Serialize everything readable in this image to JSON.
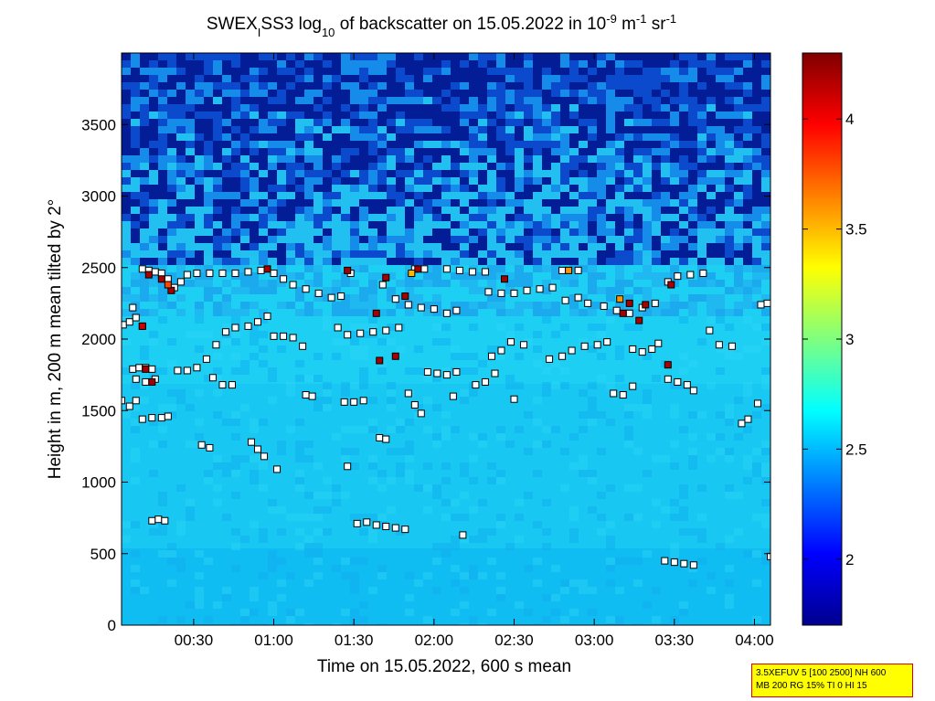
{
  "chart_data": {
    "type": "heatmap",
    "title": {
      "parts": [
        "SWEX",
        "I",
        "SS3 log",
        "10",
        " of backscatter on 15.05.2022 in 10",
        "-9",
        " m",
        "-1",
        " sr",
        "-1"
      ]
    },
    "xlabel": "Time on 15.05.2022, 600 s mean",
    "ylabel": "Height in m, 200 m mean tilted by 2°",
    "x_unit": "hours after 00:00",
    "xlim": [
      0.05,
      4.1
    ],
    "ylim": [
      0,
      4000
    ],
    "xticks": [
      {
        "value": 0.5,
        "label": "00:30"
      },
      {
        "value": 1.0,
        "label": "01:00"
      },
      {
        "value": 1.5,
        "label": "01:30"
      },
      {
        "value": 2.0,
        "label": "02:00"
      },
      {
        "value": 2.5,
        "label": "02:30"
      },
      {
        "value": 3.0,
        "label": "03:00"
      },
      {
        "value": 3.5,
        "label": "03:30"
      },
      {
        "value": 4.0,
        "label": "04:00"
      }
    ],
    "yticks": [
      0,
      500,
      1000,
      1500,
      2000,
      2500,
      3000,
      3500
    ],
    "colorbar": {
      "range": [
        1.7,
        4.3
      ],
      "ticks": [
        "2",
        "2.5",
        "3",
        "3.5",
        "4"
      ],
      "colormap": "jet"
    },
    "layer_points": [
      {
        "x": 0.05,
        "y": 1570
      },
      {
        "x": 0.1,
        "y": 1530
      },
      {
        "x": 0.14,
        "y": 1570
      },
      {
        "x": 0.06,
        "y": 2100
      },
      {
        "x": 0.1,
        "y": 2120
      },
      {
        "x": 0.14,
        "y": 2150
      },
      {
        "x": 0.18,
        "y": 2090
      },
      {
        "x": 0.12,
        "y": 2220
      },
      {
        "x": 0.12,
        "y": 1790
      },
      {
        "x": 0.16,
        "y": 1800
      },
      {
        "x": 0.2,
        "y": 1800
      },
      {
        "x": 0.24,
        "y": 1790
      },
      {
        "x": 0.14,
        "y": 1720
      },
      {
        "x": 0.2,
        "y": 1700
      },
      {
        "x": 0.26,
        "y": 1720
      },
      {
        "x": 0.18,
        "y": 1440
      },
      {
        "x": 0.24,
        "y": 1450
      },
      {
        "x": 0.3,
        "y": 1450
      },
      {
        "x": 0.34,
        "y": 1460
      },
      {
        "x": 0.24,
        "y": 730
      },
      {
        "x": 0.28,
        "y": 740
      },
      {
        "x": 0.32,
        "y": 730
      },
      {
        "x": 0.18,
        "y": 2490
      },
      {
        "x": 0.22,
        "y": 2480
      },
      {
        "x": 0.26,
        "y": 2470
      },
      {
        "x": 0.3,
        "y": 2460
      },
      {
        "x": 0.34,
        "y": 2420
      },
      {
        "x": 0.38,
        "y": 2360
      },
      {
        "x": 0.42,
        "y": 2400
      },
      {
        "x": 0.46,
        "y": 2450
      },
      {
        "x": 0.52,
        "y": 2460
      },
      {
        "x": 0.6,
        "y": 2460
      },
      {
        "x": 0.68,
        "y": 2460
      },
      {
        "x": 0.76,
        "y": 2460
      },
      {
        "x": 0.84,
        "y": 2470
      },
      {
        "x": 0.92,
        "y": 2480
      },
      {
        "x": 1.0,
        "y": 2460
      },
      {
        "x": 1.06,
        "y": 2420
      },
      {
        "x": 1.12,
        "y": 2380
      },
      {
        "x": 1.2,
        "y": 2350
      },
      {
        "x": 1.28,
        "y": 2320
      },
      {
        "x": 1.36,
        "y": 2290
      },
      {
        "x": 1.42,
        "y": 2300
      },
      {
        "x": 1.48,
        "y": 2460
      },
      {
        "x": 0.4,
        "y": 1780
      },
      {
        "x": 0.46,
        "y": 1780
      },
      {
        "x": 0.52,
        "y": 1800
      },
      {
        "x": 0.58,
        "y": 1860
      },
      {
        "x": 0.64,
        "y": 1960
      },
      {
        "x": 0.7,
        "y": 2050
      },
      {
        "x": 0.76,
        "y": 2080
      },
      {
        "x": 0.84,
        "y": 2090
      },
      {
        "x": 0.62,
        "y": 1730
      },
      {
        "x": 0.68,
        "y": 1680
      },
      {
        "x": 0.74,
        "y": 1680
      },
      {
        "x": 0.9,
        "y": 2120
      },
      {
        "x": 0.96,
        "y": 2160
      },
      {
        "x": 1.0,
        "y": 2020
      },
      {
        "x": 1.06,
        "y": 2020
      },
      {
        "x": 1.12,
        "y": 2010
      },
      {
        "x": 1.18,
        "y": 1950
      },
      {
        "x": 0.86,
        "y": 1280
      },
      {
        "x": 0.9,
        "y": 1230
      },
      {
        "x": 0.94,
        "y": 1180
      },
      {
        "x": 0.55,
        "y": 1260
      },
      {
        "x": 0.6,
        "y": 1240
      },
      {
        "x": 1.02,
        "y": 1090
      },
      {
        "x": 1.2,
        "y": 1610
      },
      {
        "x": 1.24,
        "y": 1600
      },
      {
        "x": 1.4,
        "y": 2080
      },
      {
        "x": 1.46,
        "y": 2030
      },
      {
        "x": 1.54,
        "y": 2040
      },
      {
        "x": 1.62,
        "y": 2050
      },
      {
        "x": 1.7,
        "y": 2060
      },
      {
        "x": 1.78,
        "y": 2080
      },
      {
        "x": 1.44,
        "y": 1560
      },
      {
        "x": 1.5,
        "y": 1560
      },
      {
        "x": 1.56,
        "y": 1570
      },
      {
        "x": 1.46,
        "y": 1110
      },
      {
        "x": 1.52,
        "y": 710
      },
      {
        "x": 1.58,
        "y": 720
      },
      {
        "x": 1.64,
        "y": 700
      },
      {
        "x": 1.7,
        "y": 690
      },
      {
        "x": 1.76,
        "y": 680
      },
      {
        "x": 1.82,
        "y": 670
      },
      {
        "x": 1.66,
        "y": 1310
      },
      {
        "x": 1.7,
        "y": 1300
      },
      {
        "x": 1.68,
        "y": 2380
      },
      {
        "x": 1.76,
        "y": 2280
      },
      {
        "x": 1.84,
        "y": 2240
      },
      {
        "x": 1.92,
        "y": 2220
      },
      {
        "x": 2.0,
        "y": 2210
      },
      {
        "x": 2.08,
        "y": 2180
      },
      {
        "x": 2.14,
        "y": 2200
      },
      {
        "x": 1.84,
        "y": 1620
      },
      {
        "x": 1.88,
        "y": 1540
      },
      {
        "x": 1.92,
        "y": 1480
      },
      {
        "x": 1.88,
        "y": 2490
      },
      {
        "x": 1.94,
        "y": 2490
      },
      {
        "x": 1.96,
        "y": 1770
      },
      {
        "x": 2.02,
        "y": 1760
      },
      {
        "x": 2.08,
        "y": 1750
      },
      {
        "x": 2.14,
        "y": 1770
      },
      {
        "x": 2.12,
        "y": 1600
      },
      {
        "x": 2.18,
        "y": 630
      },
      {
        "x": 2.08,
        "y": 2490
      },
      {
        "x": 2.16,
        "y": 2480
      },
      {
        "x": 2.24,
        "y": 2470
      },
      {
        "x": 2.32,
        "y": 2470
      },
      {
        "x": 2.26,
        "y": 1680
      },
      {
        "x": 2.32,
        "y": 1700
      },
      {
        "x": 2.38,
        "y": 1760
      },
      {
        "x": 2.36,
        "y": 1880
      },
      {
        "x": 2.42,
        "y": 1920
      },
      {
        "x": 2.48,
        "y": 1980
      },
      {
        "x": 2.56,
        "y": 1960
      },
      {
        "x": 2.34,
        "y": 2330
      },
      {
        "x": 2.42,
        "y": 2320
      },
      {
        "x": 2.5,
        "y": 2320
      },
      {
        "x": 2.58,
        "y": 2340
      },
      {
        "x": 2.66,
        "y": 2350
      },
      {
        "x": 2.74,
        "y": 2360
      },
      {
        "x": 2.5,
        "y": 1580
      },
      {
        "x": 2.72,
        "y": 1860
      },
      {
        "x": 2.8,
        "y": 1880
      },
      {
        "x": 2.86,
        "y": 1920
      },
      {
        "x": 2.94,
        "y": 1950
      },
      {
        "x": 3.02,
        "y": 1960
      },
      {
        "x": 3.08,
        "y": 1980
      },
      {
        "x": 2.82,
        "y": 2270
      },
      {
        "x": 2.9,
        "y": 2290
      },
      {
        "x": 2.96,
        "y": 2250
      },
      {
        "x": 2.8,
        "y": 2480
      },
      {
        "x": 2.9,
        "y": 2480
      },
      {
        "x": 3.06,
        "y": 2230
      },
      {
        "x": 3.14,
        "y": 2200
      },
      {
        "x": 3.22,
        "y": 2180
      },
      {
        "x": 3.3,
        "y": 2220
      },
      {
        "x": 3.38,
        "y": 2250
      },
      {
        "x": 3.12,
        "y": 1620
      },
      {
        "x": 3.18,
        "y": 1610
      },
      {
        "x": 3.24,
        "y": 1670
      },
      {
        "x": 3.24,
        "y": 1930
      },
      {
        "x": 3.3,
        "y": 1910
      },
      {
        "x": 3.36,
        "y": 1930
      },
      {
        "x": 3.4,
        "y": 1970
      },
      {
        "x": 3.46,
        "y": 1720
      },
      {
        "x": 3.52,
        "y": 1700
      },
      {
        "x": 3.58,
        "y": 1680
      },
      {
        "x": 3.62,
        "y": 1640
      },
      {
        "x": 3.46,
        "y": 2400
      },
      {
        "x": 3.52,
        "y": 2440
      },
      {
        "x": 3.6,
        "y": 2450
      },
      {
        "x": 3.68,
        "y": 2460
      },
      {
        "x": 3.44,
        "y": 450
      },
      {
        "x": 3.5,
        "y": 440
      },
      {
        "x": 3.56,
        "y": 430
      },
      {
        "x": 3.62,
        "y": 420
      },
      {
        "x": 3.72,
        "y": 2060
      },
      {
        "x": 3.78,
        "y": 1960
      },
      {
        "x": 3.86,
        "y": 1950
      },
      {
        "x": 3.92,
        "y": 1410
      },
      {
        "x": 3.96,
        "y": 1440
      },
      {
        "x": 4.02,
        "y": 1550
      },
      {
        "x": 4.04,
        "y": 2240
      },
      {
        "x": 4.08,
        "y": 2250
      },
      {
        "x": 4.1,
        "y": 480
      }
    ],
    "highlight_points": [
      {
        "x": 0.18,
        "y": 2090,
        "value": 4.1
      },
      {
        "x": 0.2,
        "y": 1790,
        "value": 4.2
      },
      {
        "x": 0.24,
        "y": 1700,
        "value": 4.2
      },
      {
        "x": 0.22,
        "y": 2450,
        "value": 4.2
      },
      {
        "x": 0.3,
        "y": 2420,
        "value": 4.2
      },
      {
        "x": 0.36,
        "y": 2340,
        "value": 4.2
      },
      {
        "x": 0.34,
        "y": 2380,
        "value": 3.8
      },
      {
        "x": 0.96,
        "y": 2490,
        "value": 4.2
      },
      {
        "x": 1.46,
        "y": 2480,
        "value": 4.2
      },
      {
        "x": 1.7,
        "y": 2430,
        "value": 4.2
      },
      {
        "x": 1.64,
        "y": 2180,
        "value": 4.2
      },
      {
        "x": 1.66,
        "y": 1850,
        "value": 4.2
      },
      {
        "x": 1.76,
        "y": 1880,
        "value": 4.2
      },
      {
        "x": 1.82,
        "y": 2300,
        "value": 4.2
      },
      {
        "x": 1.9,
        "y": 2490,
        "value": 4.2
      },
      {
        "x": 1.86,
        "y": 2460,
        "value": 3.5
      },
      {
        "x": 2.44,
        "y": 2420,
        "value": 4.2
      },
      {
        "x": 2.84,
        "y": 2480,
        "value": 3.6
      },
      {
        "x": 3.16,
        "y": 2280,
        "value": 3.6
      },
      {
        "x": 3.22,
        "y": 2250,
        "value": 4.2
      },
      {
        "x": 3.18,
        "y": 2180,
        "value": 4.2
      },
      {
        "x": 3.28,
        "y": 2130,
        "value": 4.2
      },
      {
        "x": 3.32,
        "y": 2240,
        "value": 4.2
      },
      {
        "x": 3.46,
        "y": 1820,
        "value": 4.2
      },
      {
        "x": 3.48,
        "y": 2380,
        "value": 4.2
      }
    ]
  },
  "info_box": {
    "line1": "3.5XEFUV 5 [100 2500] NH 600",
    "line2": "MB 200 RG 15% TI 0 HI 15"
  }
}
